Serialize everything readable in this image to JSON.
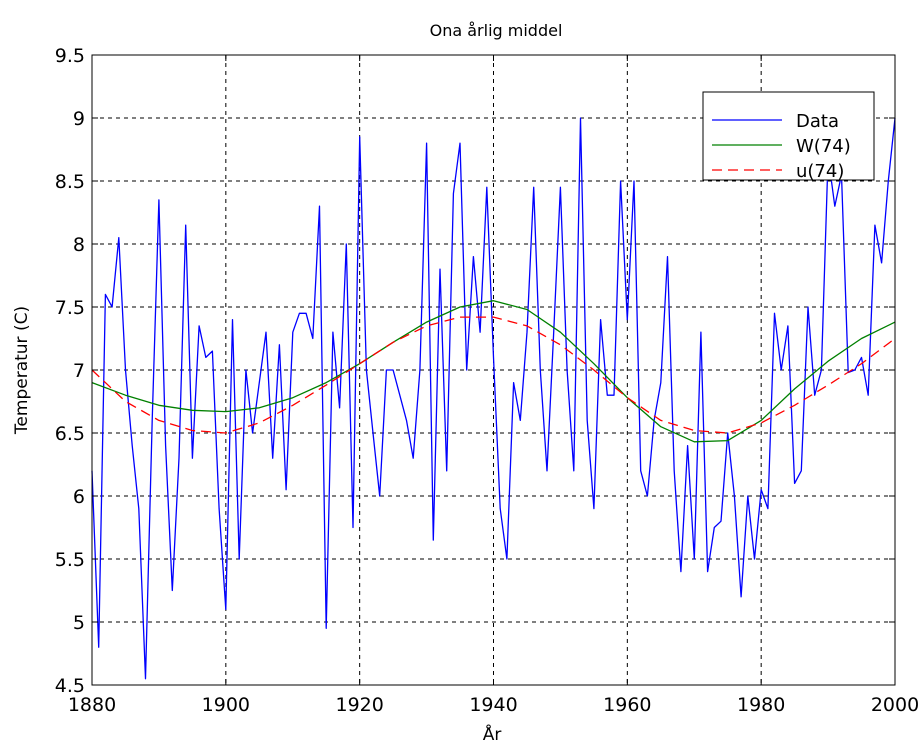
{
  "chart_data": {
    "type": "line",
    "title": "Ona årlig middel",
    "xlabel": "År",
    "ylabel": "Temperatur (C)",
    "xlim": [
      1880,
      2000
    ],
    "ylim": [
      4.5,
      9.5
    ],
    "x_ticks": [
      1880,
      1900,
      1920,
      1940,
      1960,
      1980,
      2000
    ],
    "y_ticks": [
      4.5,
      5,
      5.5,
      6,
      6.5,
      7,
      7.5,
      8,
      8.5,
      9,
      9.5
    ],
    "x_tick_labels": [
      "1880",
      "1900",
      "1920",
      "1940",
      "1960",
      "1980",
      "2000"
    ],
    "y_tick_labels": [
      "4.5",
      "5",
      "5.5",
      "6",
      "6.5",
      "7",
      "7.5",
      "8",
      "8.5",
      "9",
      "9.5"
    ],
    "grid": true,
    "legend_position": "top-right",
    "series": [
      {
        "name": "Data",
        "color": "#0000ff",
        "style": "solid",
        "x": [
          1880,
          1881,
          1882,
          1883,
          1884,
          1885,
          1886,
          1887,
          1888,
          1889,
          1890,
          1891,
          1892,
          1893,
          1894,
          1895,
          1896,
          1897,
          1898,
          1899,
          1900,
          1901,
          1902,
          1903,
          1904,
          1905,
          1906,
          1907,
          1908,
          1909,
          1910,
          1911,
          1912,
          1913,
          1914,
          1915,
          1916,
          1917,
          1918,
          1919,
          1920,
          1921,
          1922,
          1923,
          1924,
          1925,
          1926,
          1927,
          1928,
          1929,
          1930,
          1931,
          1932,
          1933,
          1934,
          1935,
          1936,
          1937,
          1938,
          1939,
          1940,
          1941,
          1942,
          1943,
          1944,
          1945,
          1946,
          1947,
          1948,
          1949,
          1950,
          1951,
          1952,
          1953,
          1954,
          1955,
          1956,
          1957,
          1958,
          1959,
          1960,
          1961,
          1962,
          1963,
          1964,
          1965,
          1966,
          1967,
          1968,
          1969,
          1970,
          1971,
          1972,
          1973,
          1974,
          1975,
          1976,
          1977,
          1978,
          1979,
          1980,
          1981,
          1982,
          1983,
          1984,
          1985,
          1986,
          1987,
          1988,
          1989,
          1990,
          1991,
          1992,
          1993,
          1994,
          1995,
          1996,
          1997,
          1998,
          1999,
          2000
        ],
        "y": [
          6.2,
          4.8,
          7.6,
          7.5,
          8.05,
          7.0,
          6.4,
          5.9,
          4.55,
          6.6,
          8.35,
          6.4,
          5.25,
          6.3,
          8.15,
          6.3,
          7.35,
          7.1,
          7.15,
          5.9,
          5.1,
          7.4,
          5.5,
          7.0,
          6.5,
          6.9,
          7.3,
          6.3,
          7.2,
          6.05,
          7.3,
          7.45,
          7.45,
          7.25,
          8.3,
          4.95,
          7.3,
          6.7,
          8.0,
          5.75,
          8.85,
          7.0,
          6.5,
          6.0,
          7.0,
          7.0,
          6.8,
          6.6,
          6.3,
          7.0,
          8.8,
          5.65,
          7.8,
          6.2,
          8.4,
          8.8,
          7.0,
          7.9,
          7.3,
          8.45,
          7.1,
          5.9,
          5.5,
          6.9,
          6.6,
          7.3,
          8.45,
          7.0,
          6.2,
          7.3,
          8.45,
          7.0,
          6.2,
          9.0,
          6.6,
          5.9,
          7.4,
          6.8,
          6.8,
          8.5,
          7.4,
          8.5,
          6.2,
          6.0,
          6.6,
          6.9,
          7.9,
          6.2,
          5.4,
          6.4,
          5.5,
          7.3,
          5.4,
          5.75,
          5.8,
          6.5,
          6.0,
          5.2,
          6.0,
          5.5,
          6.05,
          5.9,
          7.45,
          7.0,
          7.35,
          6.1,
          6.2,
          7.5,
          6.8,
          7.0,
          8.7,
          8.3,
          8.55,
          6.98,
          7.0,
          7.1,
          6.8,
          8.15,
          7.85,
          8.5,
          9.0
        ],
        "x_pairs_note": ""
      },
      {
        "name": "W(74)",
        "color": "#008000",
        "style": "solid",
        "x": [
          1880,
          1885,
          1890,
          1895,
          1900,
          1905,
          1910,
          1915,
          1920,
          1925,
          1930,
          1935,
          1940,
          1945,
          1950,
          1955,
          1960,
          1965,
          1970,
          1975,
          1980,
          1985,
          1990,
          1995,
          2000
        ],
        "y": [
          6.9,
          6.8,
          6.72,
          6.68,
          6.67,
          6.7,
          6.78,
          6.9,
          7.05,
          7.22,
          7.38,
          7.5,
          7.55,
          7.48,
          7.3,
          7.05,
          6.78,
          6.55,
          6.43,
          6.44,
          6.6,
          6.85,
          7.07,
          7.25,
          7.38
        ]
      },
      {
        "name": "u(74)",
        "color": "#ff0000",
        "style": "dashed",
        "x": [
          1880,
          1885,
          1890,
          1895,
          1900,
          1905,
          1910,
          1915,
          1920,
          1925,
          1930,
          1935,
          1940,
          1945,
          1950,
          1955,
          1960,
          1965,
          1970,
          1975,
          1980,
          1985,
          1990,
          1995,
          2000
        ],
        "y": [
          7.0,
          6.75,
          6.6,
          6.52,
          6.5,
          6.58,
          6.72,
          6.88,
          7.05,
          7.22,
          7.35,
          7.42,
          7.42,
          7.35,
          7.2,
          7.0,
          6.78,
          6.6,
          6.52,
          6.5,
          6.58,
          6.72,
          6.88,
          7.05,
          7.25
        ]
      }
    ]
  }
}
